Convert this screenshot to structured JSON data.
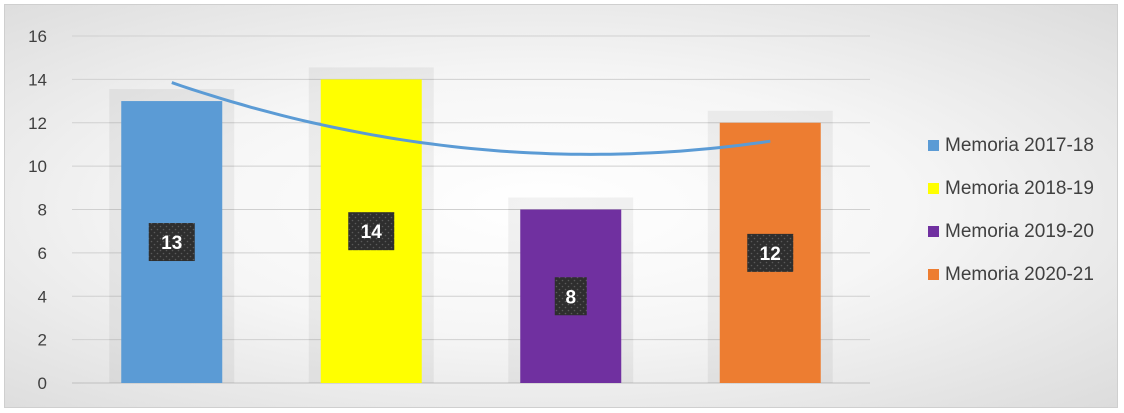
{
  "chart_data": {
    "type": "bar",
    "categories": [
      "Memoria 2017-18",
      "Memoria 2018-19",
      "Memoria 2019-20",
      "Memoria 2020-21"
    ],
    "values": [
      13,
      14,
      8,
      12
    ],
    "colors": [
      "#5b9bd5",
      "#ffff00",
      "#7030a0",
      "#ed7d31"
    ],
    "data_labels": [
      "13",
      "14",
      "8",
      "12"
    ],
    "y_ticks": [
      "0",
      "2",
      "4",
      "6",
      "8",
      "10",
      "12",
      "14",
      "16"
    ],
    "ylim": [
      0,
      16
    ],
    "grid": true,
    "trendline": {
      "type": "polynomial",
      "color": "#5b9bd5"
    },
    "legend": {
      "position": "right",
      "items": [
        "Memoria 2017-18",
        "Memoria 2018-19",
        "Memoria 2019-20",
        "Memoria 2020-21"
      ]
    },
    "title": "",
    "xlabel": "",
    "ylabel": ""
  }
}
